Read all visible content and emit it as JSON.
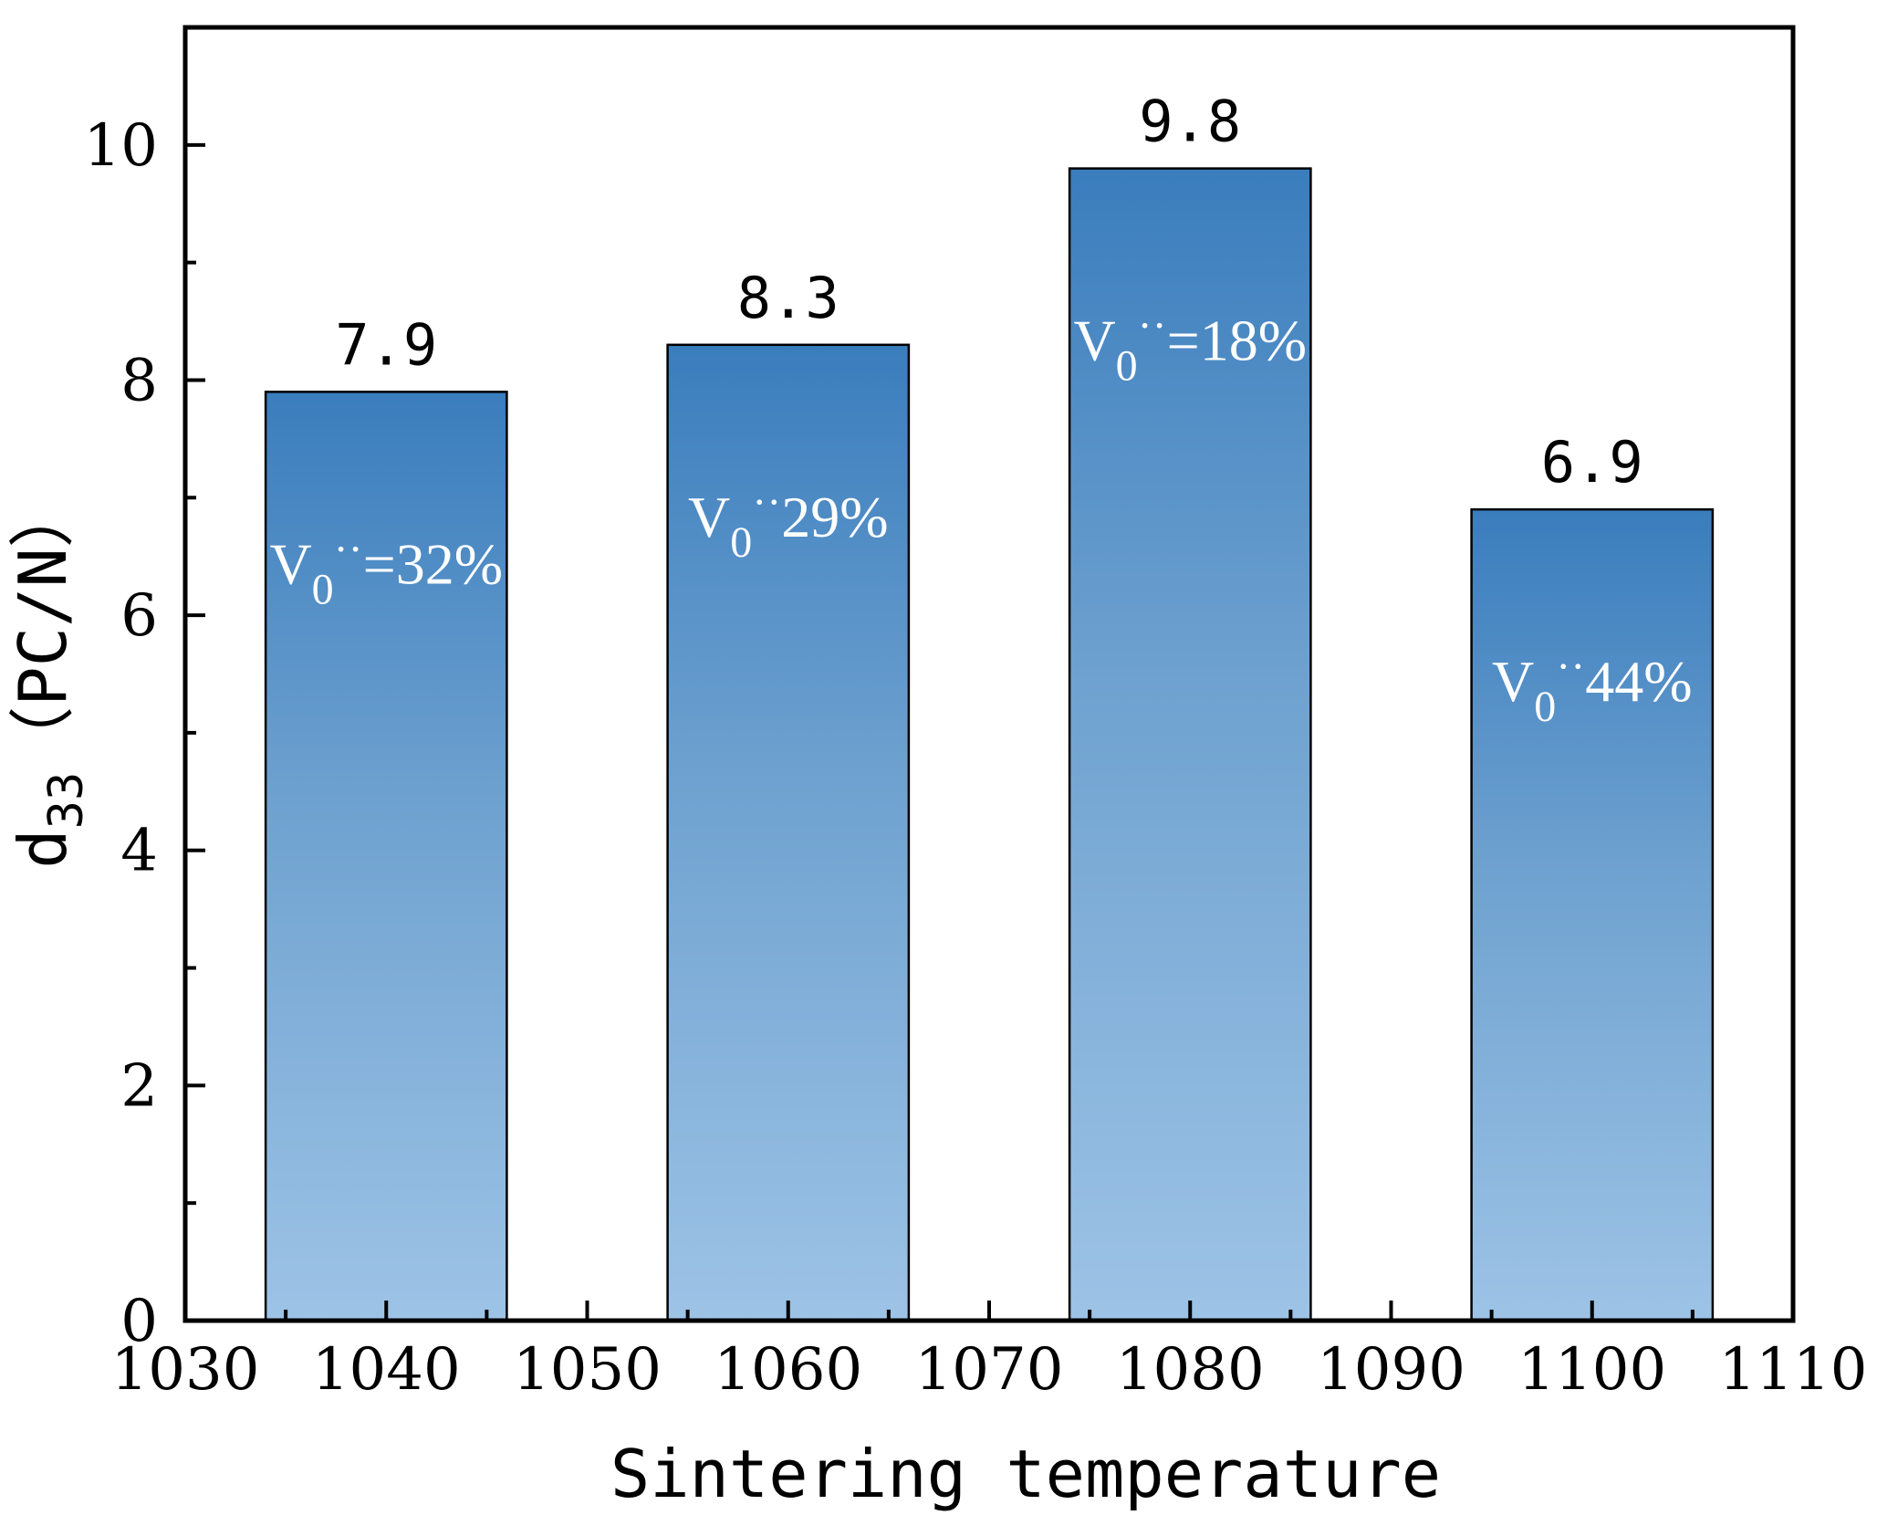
{
  "chart_data": {
    "type": "bar",
    "title": "",
    "xlabel": "Sintering temperature",
    "ylabel_main": "d",
    "ylabel_sub": "33",
    "ylabel_unit": "（PC/N）",
    "x": [
      1040,
      1060,
      1080,
      1100
    ],
    "values": [
      7.9,
      8.3,
      9.8,
      6.9
    ],
    "value_labels": [
      "7.9",
      "8.3",
      "9.8",
      "6.9"
    ],
    "bar_width": 12,
    "xlim": [
      1030,
      1110
    ],
    "ylim": [
      0,
      11
    ],
    "xticks": [
      1030,
      1040,
      1050,
      1060,
      1070,
      1080,
      1090,
      1100,
      1110
    ],
    "yticks": [
      0,
      2,
      4,
      6,
      8,
      10
    ],
    "annotations": [
      {
        "prefix": "V",
        "sub": "0",
        "sup": "··",
        "text": "=32%"
      },
      {
        "prefix": "V",
        "sub": "0",
        "sup": "··",
        "text": "29%"
      },
      {
        "prefix": "V",
        "sub": "0",
        "sup": "··",
        "text": "=18%"
      },
      {
        "prefix": "V",
        "sub": "0",
        "sup": "··",
        "text": "44%"
      }
    ],
    "grid": false,
    "colors": {
      "bar_top": "#3a7dbd",
      "bar_mid": "#6fa2d0",
      "bar_bottom": "#9dc3e6",
      "outline": "#000000"
    }
  }
}
